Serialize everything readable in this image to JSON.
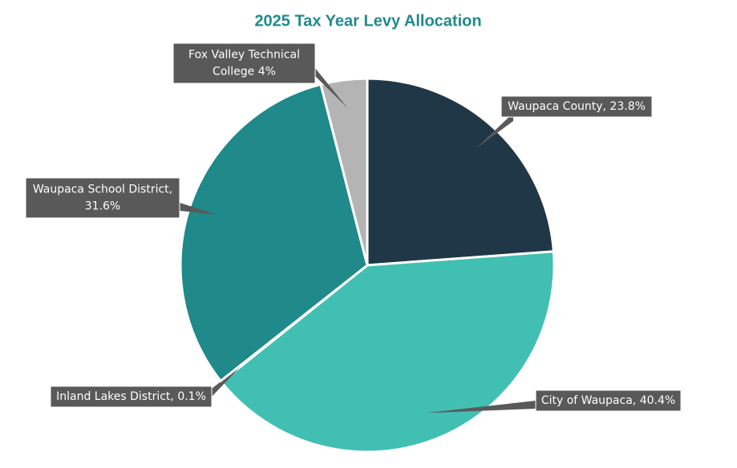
{
  "chart_data": {
    "type": "pie",
    "title": "2025 Tax Year Levy Allocation",
    "values": [
      23.8,
      40.4,
      0.1,
      31.6,
      4
    ],
    "labels": [
      [
        "Waupaca County, 23.8%"
      ],
      [
        "City of Waupaca, 40.4%"
      ],
      [
        "Inland Lakes District, 0.1%"
      ],
      [
        "Waupaca School District,",
        "31.6%"
      ],
      [
        "Fox Valley Technical",
        "College  4%"
      ]
    ],
    "colors": [
      "#203747",
      "#41bfb3",
      "#3a5a6a",
      "#20898a",
      "#b4b4b4"
    ]
  }
}
